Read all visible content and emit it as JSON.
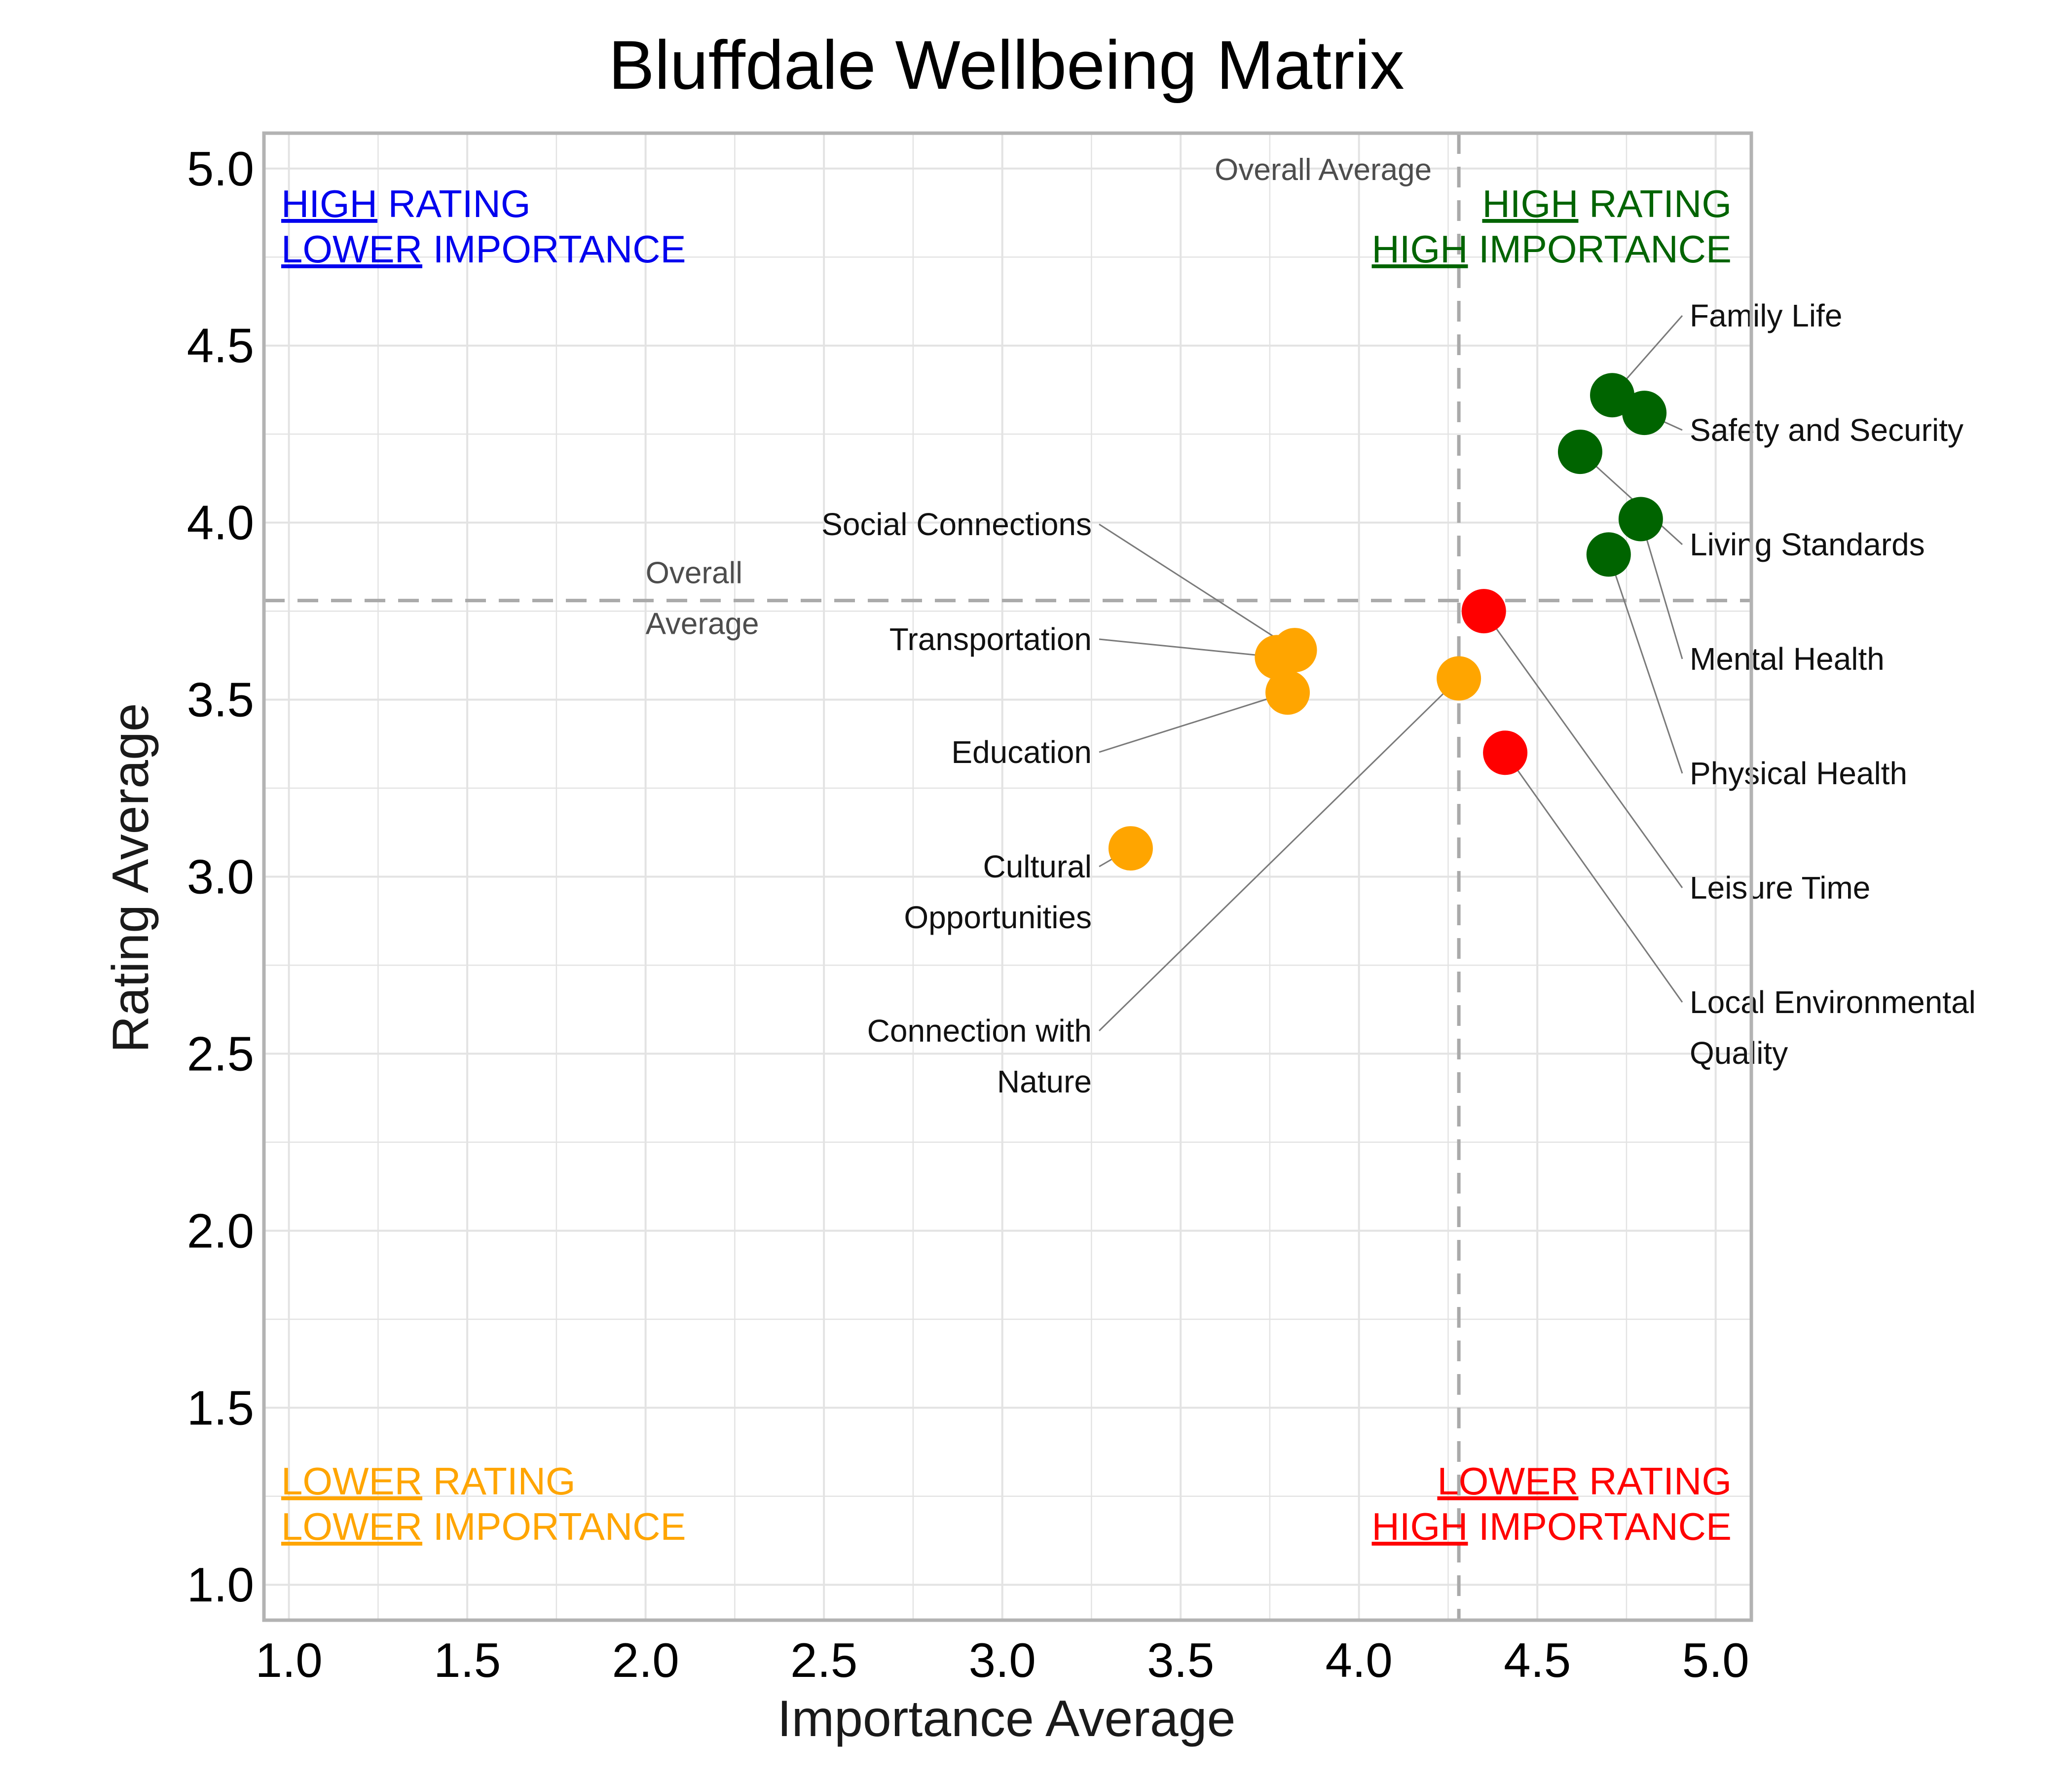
{
  "chart_data": {
    "type": "scatter",
    "title": "Bluffdale Wellbeing Matrix",
    "xlabel": "Importance Average",
    "ylabel": "Rating Average",
    "xlim": [
      0.93,
      5.1
    ],
    "ylim": [
      0.9,
      5.1
    ],
    "xticks": [
      "1.0",
      "1.5",
      "2.0",
      "2.5",
      "3.0",
      "3.5",
      "4.0",
      "4.5",
      "5.0"
    ],
    "yticks": [
      "1.0",
      "1.5",
      "2.0",
      "2.5",
      "3.0",
      "3.5",
      "4.0",
      "4.5",
      "5.0"
    ],
    "grid": true,
    "reference_lines": {
      "x": 4.28,
      "y": 3.78,
      "label_vertical": "Overall Average",
      "label_horizontal": [
        "Overall",
        "Average"
      ]
    },
    "quadrants": {
      "top_left": {
        "color": "#0000ee",
        "line1": [
          "HIGH",
          " RATING"
        ],
        "line2": [
          "LOWER",
          " IMPORTANCE"
        ]
      },
      "top_right": {
        "color": "#006400",
        "line1": [
          "HIGH",
          " RATING"
        ],
        "line2": [
          "HIGH",
          " IMPORTANCE"
        ]
      },
      "bottom_left": {
        "color": "#ffa500",
        "line1": [
          "LOWER",
          " RATING"
        ],
        "line2": [
          "LOWER",
          " IMPORTANCE"
        ]
      },
      "bottom_right": {
        "color": "#ff0000",
        "line1": [
          "LOWER",
          " RATING"
        ],
        "line2": [
          "HIGH",
          " IMPORTANCE"
        ]
      }
    },
    "colors": {
      "green": "#006400",
      "orange": "#ffa500",
      "red": "#ff0000"
    },
    "points": [
      {
        "label": [
          "Family Life"
        ],
        "x": 4.71,
        "y": 4.36,
        "color": "green"
      },
      {
        "label": [
          "Safety and Security"
        ],
        "x": 4.8,
        "y": 4.31,
        "color": "green"
      },
      {
        "label": [
          "Living Standards"
        ],
        "x": 4.62,
        "y": 4.2,
        "color": "green"
      },
      {
        "label": [
          "Mental Health"
        ],
        "x": 4.79,
        "y": 4.01,
        "color": "green"
      },
      {
        "label": [
          "Physical Health"
        ],
        "x": 4.7,
        "y": 3.91,
        "color": "green"
      },
      {
        "label": [
          "Leisure Time"
        ],
        "x": 4.35,
        "y": 3.75,
        "color": "red"
      },
      {
        "label": [
          "Local Environmental",
          "Quality"
        ],
        "x": 4.41,
        "y": 3.35,
        "color": "red"
      },
      {
        "label": [
          "Social Connections"
        ],
        "x": 3.82,
        "y": 3.64,
        "color": "orange"
      },
      {
        "label": [
          "Transportation"
        ],
        "x": 3.77,
        "y": 3.62,
        "color": "orange"
      },
      {
        "label": [
          "Education"
        ],
        "x": 3.8,
        "y": 3.52,
        "color": "orange"
      },
      {
        "label": [
          "Connection with",
          "Nature"
        ],
        "x": 4.28,
        "y": 3.56,
        "color": "orange"
      },
      {
        "label": [
          "Cultural",
          "Opportunities"
        ],
        "x": 3.36,
        "y": 3.08,
        "color": "orange"
      }
    ]
  }
}
